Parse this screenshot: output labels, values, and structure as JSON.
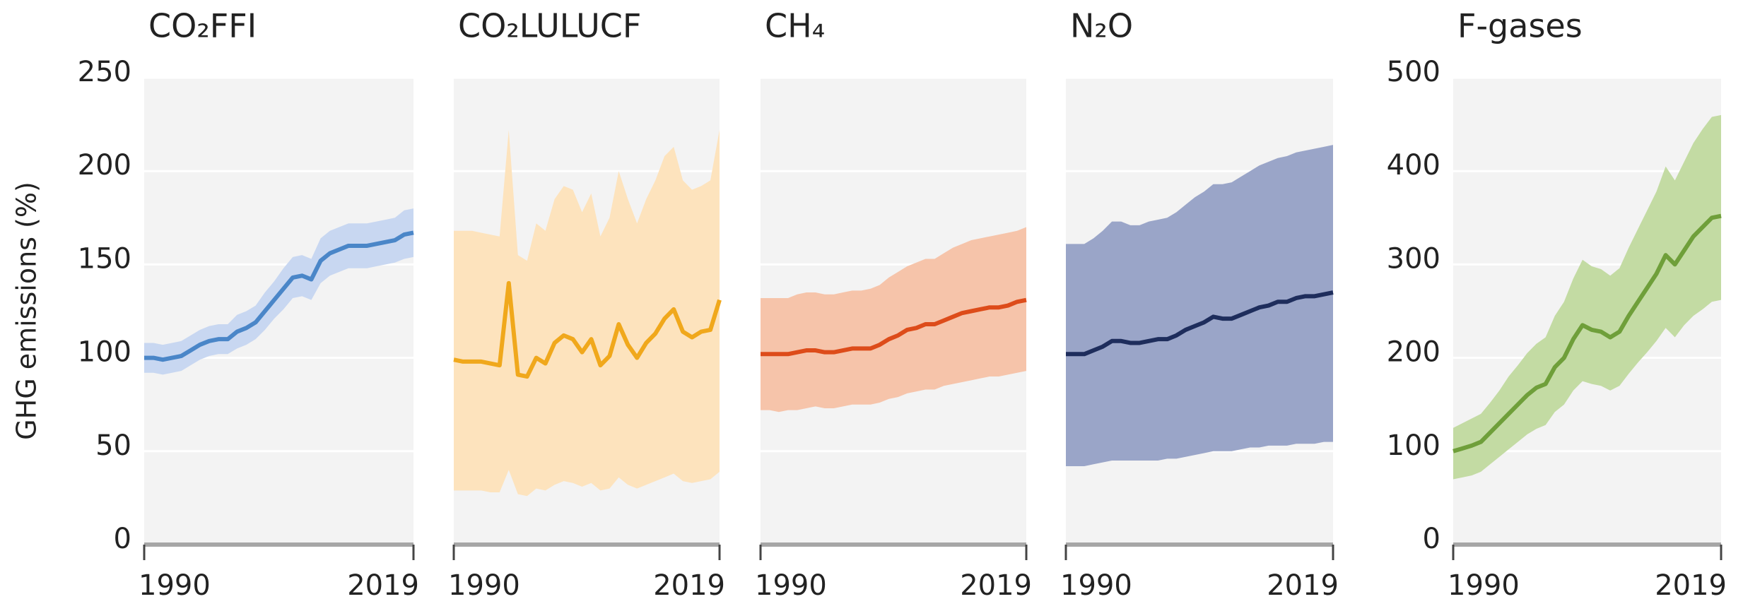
{
  "chart_data": [
    {
      "type": "line",
      "title": "CO₂FFI",
      "ylabel": "GHG emissions (%)",
      "ytick_labels": true,
      "x": [
        1990,
        1991,
        1992,
        1993,
        1994,
        1995,
        1996,
        1997,
        1998,
        1999,
        2000,
        2001,
        2002,
        2003,
        2004,
        2005,
        2006,
        2007,
        2008,
        2009,
        2010,
        2011,
        2012,
        2013,
        2014,
        2015,
        2016,
        2017,
        2018,
        2019
      ],
      "values": [
        100,
        100,
        99,
        100,
        101,
        104,
        107,
        109,
        110,
        110,
        114,
        116,
        119,
        125,
        131,
        137,
        143,
        144,
        142,
        152,
        156,
        158,
        160,
        160,
        160,
        161,
        162,
        163,
        166,
        167
      ],
      "low": [
        92,
        92,
        91,
        92,
        93,
        96,
        99,
        101,
        102,
        102,
        105,
        107,
        110,
        115,
        121,
        126,
        132,
        133,
        131,
        140,
        144,
        146,
        148,
        148,
        148,
        149,
        150,
        151,
        153,
        154
      ],
      "high": [
        108,
        108,
        107,
        108,
        109,
        112,
        115,
        117,
        118,
        118,
        123,
        125,
        128,
        135,
        141,
        148,
        154,
        155,
        153,
        164,
        168,
        170,
        172,
        172,
        172,
        173,
        174,
        175,
        179,
        180
      ],
      "color": "#4a86c8",
      "band_color": "#c8d7f1",
      "xlim": [
        1990,
        2019
      ],
      "xticks": [
        1990,
        2019
      ],
      "ylim": [
        0,
        250
      ],
      "yticks": [
        0,
        50,
        100,
        150,
        200,
        250
      ],
      "grid": true
    },
    {
      "type": "line",
      "title": "CO₂LULUCF",
      "ytick_labels": false,
      "x": [
        1990,
        1991,
        1992,
        1993,
        1994,
        1995,
        1996,
        1997,
        1998,
        1999,
        2000,
        2001,
        2002,
        2003,
        2004,
        2005,
        2006,
        2007,
        2008,
        2009,
        2010,
        2011,
        2012,
        2013,
        2014,
        2015,
        2016,
        2017,
        2018,
        2019
      ],
      "values": [
        99,
        98,
        98,
        98,
        97,
        96,
        140,
        91,
        90,
        100,
        97,
        108,
        112,
        110,
        103,
        110,
        96,
        101,
        118,
        107,
        100,
        108,
        113,
        121,
        126,
        114,
        111,
        114,
        115,
        131
      ],
      "low": [
        29,
        29,
        29,
        29,
        28,
        28,
        40,
        27,
        26,
        30,
        29,
        32,
        34,
        33,
        31,
        33,
        29,
        30,
        36,
        32,
        30,
        32,
        34,
        36,
        38,
        34,
        33,
        34,
        35,
        39
      ],
      "high": [
        168,
        168,
        168,
        167,
        166,
        165,
        222,
        155,
        152,
        172,
        168,
        185,
        192,
        190,
        178,
        188,
        165,
        175,
        200,
        185,
        172,
        185,
        195,
        208,
        213,
        195,
        190,
        192,
        195,
        222
      ],
      "color": "#f0a81c",
      "band_color": "#fde3bd",
      "xlim": [
        1990,
        2019
      ],
      "xticks": [
        1990,
        2019
      ],
      "ylim": [
        0,
        250
      ],
      "yticks": [
        0,
        50,
        100,
        150,
        200,
        250
      ],
      "grid": true
    },
    {
      "type": "line",
      "title": "CH₄",
      "ytick_labels": false,
      "x": [
        1990,
        1991,
        1992,
        1993,
        1994,
        1995,
        1996,
        1997,
        1998,
        1999,
        2000,
        2001,
        2002,
        2003,
        2004,
        2005,
        2006,
        2007,
        2008,
        2009,
        2010,
        2011,
        2012,
        2013,
        2014,
        2015,
        2016,
        2017,
        2018,
        2019
      ],
      "values": [
        102,
        102,
        102,
        102,
        103,
        104,
        104,
        103,
        103,
        104,
        105,
        105,
        105,
        107,
        110,
        112,
        115,
        116,
        118,
        118,
        120,
        122,
        124,
        125,
        126,
        127,
        127,
        128,
        130,
        131
      ],
      "low": [
        72,
        72,
        71,
        72,
        72,
        73,
        74,
        73,
        73,
        74,
        75,
        75,
        75,
        76,
        78,
        79,
        81,
        82,
        83,
        83,
        85,
        86,
        87,
        88,
        89,
        90,
        90,
        91,
        92,
        93
      ],
      "high": [
        132,
        132,
        132,
        132,
        134,
        135,
        135,
        134,
        134,
        135,
        136,
        136,
        137,
        139,
        143,
        146,
        149,
        151,
        153,
        153,
        156,
        159,
        161,
        163,
        164,
        165,
        166,
        167,
        168,
        170
      ],
      "color": "#dd4c1a",
      "band_color": "#f6c4aa",
      "xlim": [
        1990,
        2019
      ],
      "xticks": [
        1990,
        2019
      ],
      "ylim": [
        0,
        250
      ],
      "yticks": [
        0,
        50,
        100,
        150,
        200,
        250
      ],
      "grid": true
    },
    {
      "type": "line",
      "title": "N₂O",
      "ytick_labels": false,
      "x": [
        1990,
        1991,
        1992,
        1993,
        1994,
        1995,
        1996,
        1997,
        1998,
        1999,
        2000,
        2001,
        2002,
        2003,
        2004,
        2005,
        2006,
        2007,
        2008,
        2009,
        2010,
        2011,
        2012,
        2013,
        2014,
        2015,
        2016,
        2017,
        2018,
        2019
      ],
      "values": [
        102,
        102,
        102,
        104,
        106,
        109,
        109,
        108,
        108,
        109,
        110,
        110,
        112,
        115,
        117,
        119,
        122,
        121,
        121,
        123,
        125,
        127,
        128,
        130,
        130,
        132,
        133,
        133,
        134,
        135
      ],
      "low": [
        42,
        42,
        42,
        43,
        44,
        45,
        45,
        45,
        45,
        45,
        45,
        46,
        46,
        47,
        48,
        49,
        50,
        50,
        50,
        51,
        52,
        52,
        53,
        53,
        53,
        54,
        54,
        54,
        55,
        55
      ],
      "high": [
        161,
        161,
        161,
        164,
        168,
        173,
        173,
        171,
        171,
        173,
        174,
        175,
        178,
        182,
        186,
        189,
        193,
        193,
        194,
        197,
        200,
        203,
        205,
        207,
        208,
        210,
        211,
        212,
        213,
        214
      ],
      "color": "#1e2d5c",
      "band_color": "#9aa5c8",
      "xlim": [
        1990,
        2019
      ],
      "xticks": [
        1990,
        2019
      ],
      "ylim": [
        0,
        250
      ],
      "yticks": [
        0,
        50,
        100,
        150,
        200,
        250
      ],
      "grid": true
    },
    {
      "type": "line",
      "title": "F-gases",
      "ytick_labels": true,
      "x": [
        1990,
        1991,
        1992,
        1993,
        1994,
        1995,
        1996,
        1997,
        1998,
        1999,
        2000,
        2001,
        2002,
        2003,
        2004,
        2005,
        2006,
        2007,
        2008,
        2009,
        2010,
        2011,
        2012,
        2013,
        2014,
        2015,
        2016,
        2017,
        2018,
        2019
      ],
      "values": [
        100,
        103,
        106,
        110,
        120,
        130,
        140,
        150,
        160,
        168,
        172,
        190,
        200,
        220,
        235,
        230,
        228,
        222,
        228,
        245,
        260,
        275,
        290,
        310,
        300,
        315,
        330,
        340,
        350,
        352
      ],
      "low": [
        70,
        72,
        74,
        78,
        86,
        94,
        102,
        110,
        118,
        124,
        128,
        142,
        150,
        165,
        175,
        172,
        170,
        165,
        170,
        183,
        195,
        206,
        218,
        232,
        222,
        235,
        245,
        252,
        260,
        262
      ],
      "high": [
        125,
        130,
        135,
        140,
        152,
        165,
        180,
        192,
        205,
        215,
        222,
        245,
        260,
        285,
        305,
        298,
        295,
        288,
        296,
        318,
        338,
        358,
        378,
        405,
        390,
        410,
        430,
        445,
        458,
        460
      ],
      "color": "#6f9f3a",
      "band_color": "#c3dba3",
      "xlim": [
        1990,
        2019
      ],
      "xticks": [
        1990,
        2019
      ],
      "ylim": [
        0,
        500
      ],
      "yticks": [
        0,
        100,
        200,
        300,
        400,
        500
      ],
      "grid": true
    }
  ]
}
